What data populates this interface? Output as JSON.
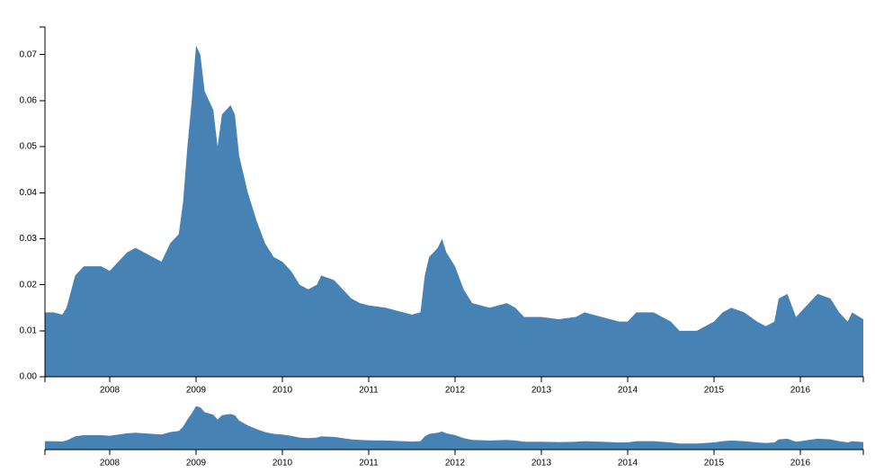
{
  "chart_data": {
    "type": "area",
    "color": "#4682b4",
    "x": [
      2007.25,
      2007.35,
      2007.45,
      2007.5,
      2007.6,
      2007.7,
      2007.8,
      2007.9,
      2008.0,
      2008.1,
      2008.2,
      2008.3,
      2008.4,
      2008.5,
      2008.6,
      2008.7,
      2008.8,
      2008.85,
      2008.9,
      2008.95,
      2009.0,
      2009.05,
      2009.1,
      2009.2,
      2009.25,
      2009.3,
      2009.4,
      2009.45,
      2009.5,
      2009.6,
      2009.7,
      2009.8,
      2009.9,
      2010.0,
      2010.1,
      2010.2,
      2010.3,
      2010.4,
      2010.45,
      2010.6,
      2010.7,
      2010.8,
      2010.9,
      2011.0,
      2011.2,
      2011.4,
      2011.5,
      2011.6,
      2011.65,
      2011.7,
      2011.8,
      2011.85,
      2011.9,
      2012.0,
      2012.1,
      2012.2,
      2012.4,
      2012.6,
      2012.7,
      2012.8,
      2013.0,
      2013.2,
      2013.4,
      2013.5,
      2013.7,
      2013.9,
      2014.0,
      2014.1,
      2014.3,
      2014.5,
      2014.6,
      2014.8,
      2014.9,
      2015.0,
      2015.1,
      2015.2,
      2015.35,
      2015.5,
      2015.6,
      2015.7,
      2015.75,
      2015.85,
      2015.95,
      2016.1,
      2016.2,
      2016.35,
      2016.45,
      2016.55,
      2016.6,
      2016.73
    ],
    "values": [
      0.014,
      0.014,
      0.0135,
      0.015,
      0.022,
      0.024,
      0.024,
      0.024,
      0.023,
      0.025,
      0.027,
      0.028,
      0.027,
      0.026,
      0.025,
      0.029,
      0.031,
      0.038,
      0.05,
      0.06,
      0.072,
      0.07,
      0.062,
      0.058,
      0.05,
      0.057,
      0.059,
      0.057,
      0.048,
      0.04,
      0.034,
      0.029,
      0.026,
      0.025,
      0.023,
      0.02,
      0.019,
      0.02,
      0.022,
      0.021,
      0.019,
      0.017,
      0.016,
      0.0155,
      0.015,
      0.014,
      0.0135,
      0.014,
      0.022,
      0.026,
      0.028,
      0.03,
      0.027,
      0.024,
      0.019,
      0.016,
      0.015,
      0.016,
      0.015,
      0.013,
      0.013,
      0.0125,
      0.013,
      0.014,
      0.013,
      0.012,
      0.012,
      0.014,
      0.014,
      0.012,
      0.01,
      0.01,
      0.011,
      0.012,
      0.014,
      0.015,
      0.014,
      0.012,
      0.011,
      0.012,
      0.017,
      0.018,
      0.013,
      0.016,
      0.018,
      0.017,
      0.014,
      0.012,
      0.014,
      0.0125
    ],
    "xlim": [
      2007.25,
      2016.73
    ],
    "ylim": [
      0,
      0.076
    ],
    "xticks": [
      2008,
      2009,
      2010,
      2011,
      2012,
      2013,
      2014,
      2015,
      2016
    ],
    "yticks": [
      {
        "value": 0,
        "label": "0.00"
      },
      0.01,
      0.02,
      0.03,
      0.04,
      0.05,
      0.06,
      0.07
    ]
  }
}
